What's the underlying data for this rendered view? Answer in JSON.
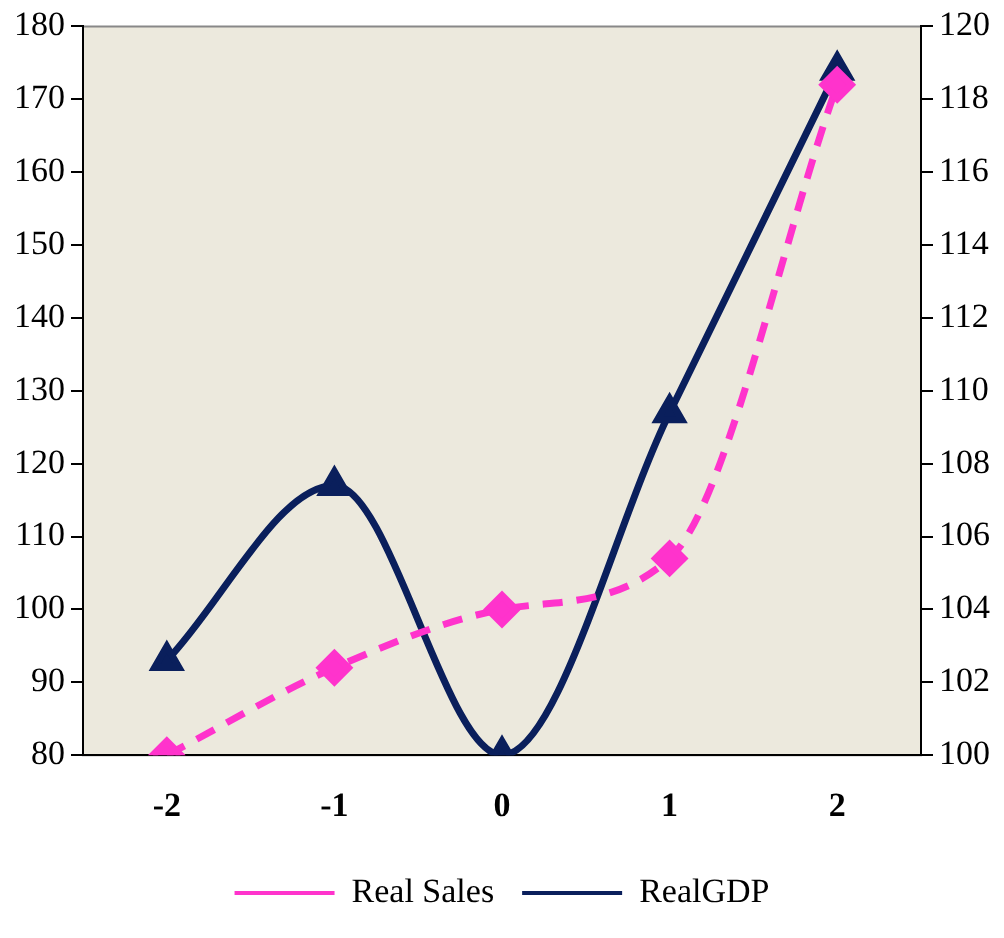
{
  "chart_data": {
    "type": "line",
    "categories": [
      "-2",
      "-1",
      "0",
      "1",
      "2"
    ],
    "series": [
      {
        "name": "Real Sales",
        "color": "#ff33cc",
        "values": [
          80,
          92,
          100,
          107,
          172
        ],
        "marker": "diamond",
        "line_style": "dashed"
      },
      {
        "name": "RealGDP",
        "color": "#0a1f5c",
        "values": [
          102.6,
          107.4,
          100,
          109.4,
          118.8
        ],
        "marker": "triangle",
        "line_style": "solid",
        "axis": "y2"
      }
    ],
    "ylim": [
      80,
      180
    ],
    "yticks": [
      80,
      90,
      100,
      110,
      120,
      130,
      140,
      150,
      160,
      170,
      180
    ],
    "y2lim": [
      100,
      120
    ],
    "y2ticks": [
      100,
      102,
      104,
      106,
      108,
      110,
      112,
      114,
      116,
      118,
      120
    ],
    "grid": false,
    "legend": "bottom"
  }
}
